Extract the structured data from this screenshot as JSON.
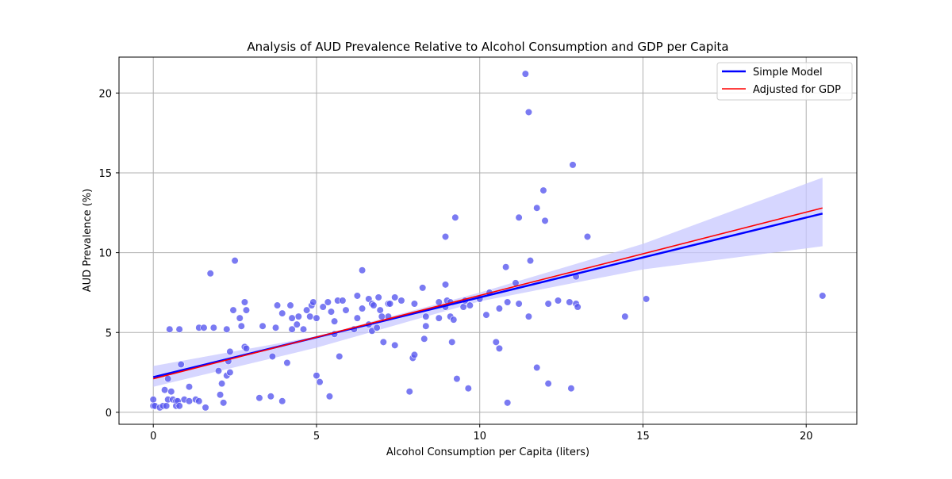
{
  "chart_data": {
    "type": "scatter",
    "title": "Analysis of AUD Prevalence Relative to Alcohol Consumption and GDP per Capita",
    "xlabel": "Alcohol Consumption per Capita (liters)",
    "ylabel": "AUD Prevalence (%)",
    "xlim": [
      -1.05,
      21.55
    ],
    "ylim": [
      -0.75,
      22.25
    ],
    "xticks": [
      0,
      5,
      10,
      15,
      20
    ],
    "yticks": [
      0,
      5,
      10,
      15,
      20
    ],
    "xtick_labels": [
      "0",
      "5",
      "10",
      "15",
      "20"
    ],
    "ytick_labels": [
      "0",
      "5",
      "10",
      "15",
      "20"
    ],
    "grid": true,
    "legend_position": "top-right",
    "legend": [
      "Simple Model",
      "Adjusted for GDP"
    ],
    "colors": {
      "points": "#5555ee",
      "simple_line": "#0000ff",
      "adjusted_line": "#ff0000",
      "band": "#c8c8ff",
      "grid": "#b0b0b0"
    },
    "points": [
      [
        0.0,
        0.4
      ],
      [
        0.0,
        0.8
      ],
      [
        0.05,
        0.4
      ],
      [
        0.2,
        0.3
      ],
      [
        0.3,
        0.4
      ],
      [
        0.35,
        1.4
      ],
      [
        0.4,
        0.4
      ],
      [
        0.45,
        0.8
      ],
      [
        0.45,
        2.1
      ],
      [
        0.5,
        5.2
      ],
      [
        0.55,
        1.3
      ],
      [
        0.6,
        0.8
      ],
      [
        0.7,
        0.7
      ],
      [
        0.7,
        0.4
      ],
      [
        0.75,
        0.7
      ],
      [
        0.8,
        0.4
      ],
      [
        0.8,
        5.2
      ],
      [
        0.85,
        3.0
      ],
      [
        0.95,
        0.8
      ],
      [
        1.1,
        1.6
      ],
      [
        1.1,
        0.7
      ],
      [
        1.3,
        0.8
      ],
      [
        1.4,
        5.3
      ],
      [
        1.4,
        0.7
      ],
      [
        1.55,
        5.3
      ],
      [
        1.6,
        0.3
      ],
      [
        1.75,
        8.7
      ],
      [
        1.85,
        5.3
      ],
      [
        2.0,
        2.6
      ],
      [
        2.05,
        1.1
      ],
      [
        2.1,
        1.8
      ],
      [
        2.15,
        0.6
      ],
      [
        2.25,
        2.3
      ],
      [
        2.25,
        5.2
      ],
      [
        2.3,
        3.2
      ],
      [
        2.35,
        2.5
      ],
      [
        2.35,
        3.8
      ],
      [
        2.45,
        6.4
      ],
      [
        2.5,
        9.5
      ],
      [
        2.65,
        5.9
      ],
      [
        2.7,
        5.4
      ],
      [
        2.8,
        6.9
      ],
      [
        2.8,
        4.1
      ],
      [
        2.85,
        4.0
      ],
      [
        2.85,
        6.4
      ],
      [
        3.25,
        0.9
      ],
      [
        3.35,
        5.4
      ],
      [
        3.6,
        1.0
      ],
      [
        3.65,
        3.5
      ],
      [
        3.75,
        5.3
      ],
      [
        3.8,
        6.7
      ],
      [
        3.95,
        6.2
      ],
      [
        3.95,
        0.7
      ],
      [
        4.1,
        3.1
      ],
      [
        4.2,
        6.7
      ],
      [
        4.25,
        5.2
      ],
      [
        4.25,
        5.9
      ],
      [
        4.4,
        5.5
      ],
      [
        4.45,
        6.0
      ],
      [
        4.6,
        5.2
      ],
      [
        4.7,
        6.4
      ],
      [
        4.8,
        6.0
      ],
      [
        4.85,
        6.7
      ],
      [
        4.9,
        6.9
      ],
      [
        5.0,
        5.9
      ],
      [
        5.0,
        2.3
      ],
      [
        5.1,
        1.9
      ],
      [
        5.2,
        6.6
      ],
      [
        5.35,
        6.9
      ],
      [
        5.4,
        1.0
      ],
      [
        5.45,
        6.3
      ],
      [
        5.55,
        5.7
      ],
      [
        5.55,
        4.9
      ],
      [
        5.65,
        7.0
      ],
      [
        5.7,
        3.5
      ],
      [
        5.8,
        7.0
      ],
      [
        5.9,
        6.4
      ],
      [
        6.15,
        5.2
      ],
      [
        6.25,
        7.3
      ],
      [
        6.25,
        5.9
      ],
      [
        6.4,
        8.9
      ],
      [
        6.4,
        6.5
      ],
      [
        6.6,
        5.5
      ],
      [
        6.6,
        7.1
      ],
      [
        6.7,
        6.8
      ],
      [
        6.7,
        5.1
      ],
      [
        6.75,
        6.7
      ],
      [
        6.85,
        5.3
      ],
      [
        6.9,
        7.2
      ],
      [
        6.95,
        6.4
      ],
      [
        7.0,
        6.0
      ],
      [
        7.05,
        4.4
      ],
      [
        7.2,
        6.8
      ],
      [
        7.2,
        6.0
      ],
      [
        7.25,
        6.8
      ],
      [
        7.4,
        7.2
      ],
      [
        7.4,
        4.2
      ],
      [
        7.6,
        7.0
      ],
      [
        7.85,
        1.3
      ],
      [
        7.95,
        3.4
      ],
      [
        8.0,
        3.6
      ],
      [
        8.0,
        6.8
      ],
      [
        8.25,
        7.8
      ],
      [
        8.3,
        4.6
      ],
      [
        8.35,
        6.0
      ],
      [
        8.35,
        5.4
      ],
      [
        8.75,
        6.9
      ],
      [
        8.75,
        5.9
      ],
      [
        8.95,
        11.0
      ],
      [
        8.95,
        8.0
      ],
      [
        8.95,
        6.6
      ],
      [
        9.0,
        7.0
      ],
      [
        9.1,
        6.0
      ],
      [
        9.1,
        6.9
      ],
      [
        9.15,
        4.4
      ],
      [
        9.2,
        5.8
      ],
      [
        9.25,
        12.2
      ],
      [
        9.3,
        2.1
      ],
      [
        9.5,
        6.6
      ],
      [
        9.55,
        7.0
      ],
      [
        9.65,
        1.5
      ],
      [
        9.7,
        6.7
      ],
      [
        10.0,
        7.1
      ],
      [
        10.2,
        6.1
      ],
      [
        10.3,
        7.5
      ],
      [
        10.5,
        4.4
      ],
      [
        10.6,
        6.5
      ],
      [
        10.6,
        4.0
      ],
      [
        10.8,
        9.1
      ],
      [
        10.85,
        6.9
      ],
      [
        10.85,
        0.6
      ],
      [
        11.1,
        8.1
      ],
      [
        11.2,
        12.2
      ],
      [
        11.2,
        6.8
      ],
      [
        11.4,
        21.2
      ],
      [
        11.5,
        18.8
      ],
      [
        11.5,
        6.0
      ],
      [
        11.55,
        9.5
      ],
      [
        11.75,
        12.8
      ],
      [
        11.75,
        2.8
      ],
      [
        11.95,
        13.9
      ],
      [
        12.0,
        12.0
      ],
      [
        12.1,
        6.8
      ],
      [
        12.1,
        1.8
      ],
      [
        12.4,
        7.0
      ],
      [
        12.75,
        6.9
      ],
      [
        12.8,
        1.5
      ],
      [
        12.85,
        15.5
      ],
      [
        12.95,
        8.5
      ],
      [
        12.95,
        6.8
      ],
      [
        13.0,
        6.6
      ],
      [
        13.3,
        11.0
      ],
      [
        14.45,
        6.0
      ],
      [
        15.1,
        7.1
      ],
      [
        20.5,
        7.3
      ]
    ],
    "simple_model": {
      "x": [
        0,
        20.5
      ],
      "y": [
        2.2,
        12.45
      ]
    },
    "adjusted_for_gdp": {
      "x": [
        0,
        20.5
      ],
      "y": [
        2.1,
        12.8
      ]
    },
    "confidence_band": {
      "x": [
        0,
        5,
        10,
        15,
        20.5
      ],
      "upper": [
        2.9,
        4.75,
        7.5,
        10.55,
        14.7
      ],
      "lower": [
        1.6,
        4.05,
        6.95,
        8.95,
        10.4
      ]
    }
  }
}
